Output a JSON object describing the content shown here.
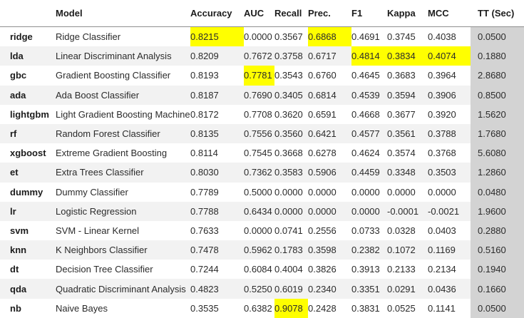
{
  "colors": {
    "highlight_yellow": "#ffff00",
    "tt_column_gray": "#d3d3d3",
    "stripe_gray": "#f2f2f2",
    "header_rule_gray": "#8f8f8f"
  },
  "table": {
    "columns": [
      "",
      "Model",
      "Accuracy",
      "AUC",
      "Recall",
      "Prec.",
      "F1",
      "Kappa",
      "MCC",
      "TT (Sec)"
    ],
    "rows": [
      {
        "id": "ridge",
        "model": "Ridge Classifier",
        "values": [
          "0.8215",
          "0.0000",
          "0.3567",
          "0.6868",
          "0.4691",
          "0.3745",
          "0.4038",
          "0.0500"
        ],
        "highlights": [
          0,
          3
        ]
      },
      {
        "id": "lda",
        "model": "Linear Discriminant Analysis",
        "values": [
          "0.8209",
          "0.7672",
          "0.3758",
          "0.6717",
          "0.4814",
          "0.3834",
          "0.4074",
          "0.1880"
        ],
        "highlights": [
          4,
          5,
          6
        ]
      },
      {
        "id": "gbc",
        "model": "Gradient Boosting Classifier",
        "values": [
          "0.8193",
          "0.7781",
          "0.3543",
          "0.6760",
          "0.4645",
          "0.3683",
          "0.3964",
          "2.8680"
        ],
        "highlights": [
          1
        ]
      },
      {
        "id": "ada",
        "model": "Ada Boost Classifier",
        "values": [
          "0.8187",
          "0.7690",
          "0.3405",
          "0.6814",
          "0.4539",
          "0.3594",
          "0.3906",
          "0.8500"
        ],
        "highlights": []
      },
      {
        "id": "lightgbm",
        "model": "Light Gradient Boosting Machine",
        "values": [
          "0.8172",
          "0.7708",
          "0.3620",
          "0.6591",
          "0.4668",
          "0.3677",
          "0.3920",
          "1.5620"
        ],
        "highlights": []
      },
      {
        "id": "rf",
        "model": "Random Forest Classifier",
        "values": [
          "0.8135",
          "0.7556",
          "0.3560",
          "0.6421",
          "0.4577",
          "0.3561",
          "0.3788",
          "1.7680"
        ],
        "highlights": []
      },
      {
        "id": "xgboost",
        "model": "Extreme Gradient Boosting",
        "values": [
          "0.8114",
          "0.7545",
          "0.3668",
          "0.6278",
          "0.4624",
          "0.3574",
          "0.3768",
          "5.6080"
        ],
        "highlights": []
      },
      {
        "id": "et",
        "model": "Extra Trees Classifier",
        "values": [
          "0.8030",
          "0.7362",
          "0.3583",
          "0.5906",
          "0.4459",
          "0.3348",
          "0.3503",
          "1.2860"
        ],
        "highlights": []
      },
      {
        "id": "dummy",
        "model": "Dummy Classifier",
        "values": [
          "0.7789",
          "0.5000",
          "0.0000",
          "0.0000",
          "0.0000",
          "0.0000",
          "0.0000",
          "0.0480"
        ],
        "highlights": []
      },
      {
        "id": "lr",
        "model": "Logistic Regression",
        "values": [
          "0.7788",
          "0.6434",
          "0.0000",
          "0.0000",
          "0.0000",
          "-0.0001",
          "-0.0021",
          "1.9600"
        ],
        "highlights": []
      },
      {
        "id": "svm",
        "model": "SVM - Linear Kernel",
        "values": [
          "0.7633",
          "0.0000",
          "0.0741",
          "0.2556",
          "0.0733",
          "0.0328",
          "0.0403",
          "0.2880"
        ],
        "highlights": []
      },
      {
        "id": "knn",
        "model": "K Neighbors Classifier",
        "values": [
          "0.7478",
          "0.5962",
          "0.1783",
          "0.3598",
          "0.2382",
          "0.1072",
          "0.1169",
          "0.5160"
        ],
        "highlights": []
      },
      {
        "id": "dt",
        "model": "Decision Tree Classifier",
        "values": [
          "0.7244",
          "0.6084",
          "0.4004",
          "0.3826",
          "0.3913",
          "0.2133",
          "0.2134",
          "0.1940"
        ],
        "highlights": []
      },
      {
        "id": "qda",
        "model": "Quadratic Discriminant Analysis",
        "values": [
          "0.4823",
          "0.5250",
          "0.6019",
          "0.2340",
          "0.3351",
          "0.0291",
          "0.0436",
          "0.1660"
        ],
        "highlights": []
      },
      {
        "id": "nb",
        "model": "Naive Bayes",
        "values": [
          "0.3535",
          "0.6382",
          "0.9078",
          "0.2428",
          "0.3831",
          "0.0525",
          "0.1141",
          "0.0500"
        ],
        "highlights": [
          2
        ]
      }
    ]
  }
}
